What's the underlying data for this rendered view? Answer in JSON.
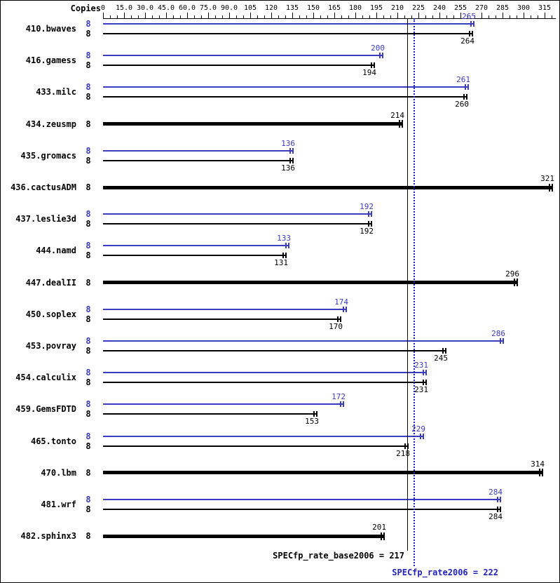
{
  "chart_data": {
    "type": "bar",
    "orientation": "horizontal",
    "copies_header": "Copies",
    "axis": {
      "min": 0,
      "max": 322,
      "major_tick_interval": 15,
      "minor_tick_interval": 5,
      "tick_labels": [
        "0",
        "15.0",
        "30.0",
        "45.0",
        "60.0",
        "75.0",
        "90.0",
        "105",
        "120",
        "135",
        "150",
        "165",
        "180",
        "195",
        "210",
        "225",
        "240",
        "255",
        "270",
        "285",
        "300",
        "315"
      ]
    },
    "colors": {
      "peak": "#3c3cc0",
      "base": "#000000"
    },
    "series_legend": {
      "peak": "SPECfp_rate2006 (blue)",
      "base": "SPECfp_rate_base2006 (black)"
    },
    "benchmarks": [
      {
        "name": "410.bwaves",
        "copies": 8,
        "peak": 265,
        "base": 264,
        "single": false
      },
      {
        "name": "416.gamess",
        "copies": 8,
        "peak": 200,
        "base": 194,
        "single": false
      },
      {
        "name": "433.milc",
        "copies": 8,
        "peak": 261,
        "base": 260,
        "single": false
      },
      {
        "name": "434.zeusmp",
        "copies": 8,
        "base": 214,
        "single": true
      },
      {
        "name": "435.gromacs",
        "copies": 8,
        "peak": 136,
        "base": 136,
        "single": false
      },
      {
        "name": "436.cactusADM",
        "copies": 8,
        "base": 321,
        "single": true
      },
      {
        "name": "437.leslie3d",
        "copies": 8,
        "peak": 192,
        "base": 192,
        "single": false
      },
      {
        "name": "444.namd",
        "copies": 8,
        "peak": 133,
        "base": 131,
        "single": false
      },
      {
        "name": "447.dealII",
        "copies": 8,
        "base": 296,
        "single": true
      },
      {
        "name": "450.soplex",
        "copies": 8,
        "peak": 174,
        "base": 170,
        "single": false
      },
      {
        "name": "453.povray",
        "copies": 8,
        "peak": 286,
        "base": 245,
        "single": false
      },
      {
        "name": "454.calculix",
        "copies": 8,
        "peak": 231,
        "base": 231,
        "single": false
      },
      {
        "name": "459.GemsFDTD",
        "copies": 8,
        "peak": 172,
        "base": 153,
        "single": false
      },
      {
        "name": "465.tonto",
        "copies": 8,
        "peak": 229,
        "base": 218,
        "single": false
      },
      {
        "name": "470.lbm",
        "copies": 8,
        "base": 314,
        "single": true
      },
      {
        "name": "481.wrf",
        "copies": 8,
        "peak": 284,
        "base": 284,
        "single": false
      },
      {
        "name": "482.sphinx3",
        "copies": 8,
        "base": 201,
        "single": true
      }
    ],
    "reference_lines": [
      {
        "label": "SPECfp_rate_base2006 = 217",
        "value": 217,
        "style": "solid",
        "color": "#000000"
      },
      {
        "label": "SPECfp_rate2006 = 222",
        "value": 222,
        "style": "dotted",
        "color": "#2222bb"
      }
    ]
  }
}
